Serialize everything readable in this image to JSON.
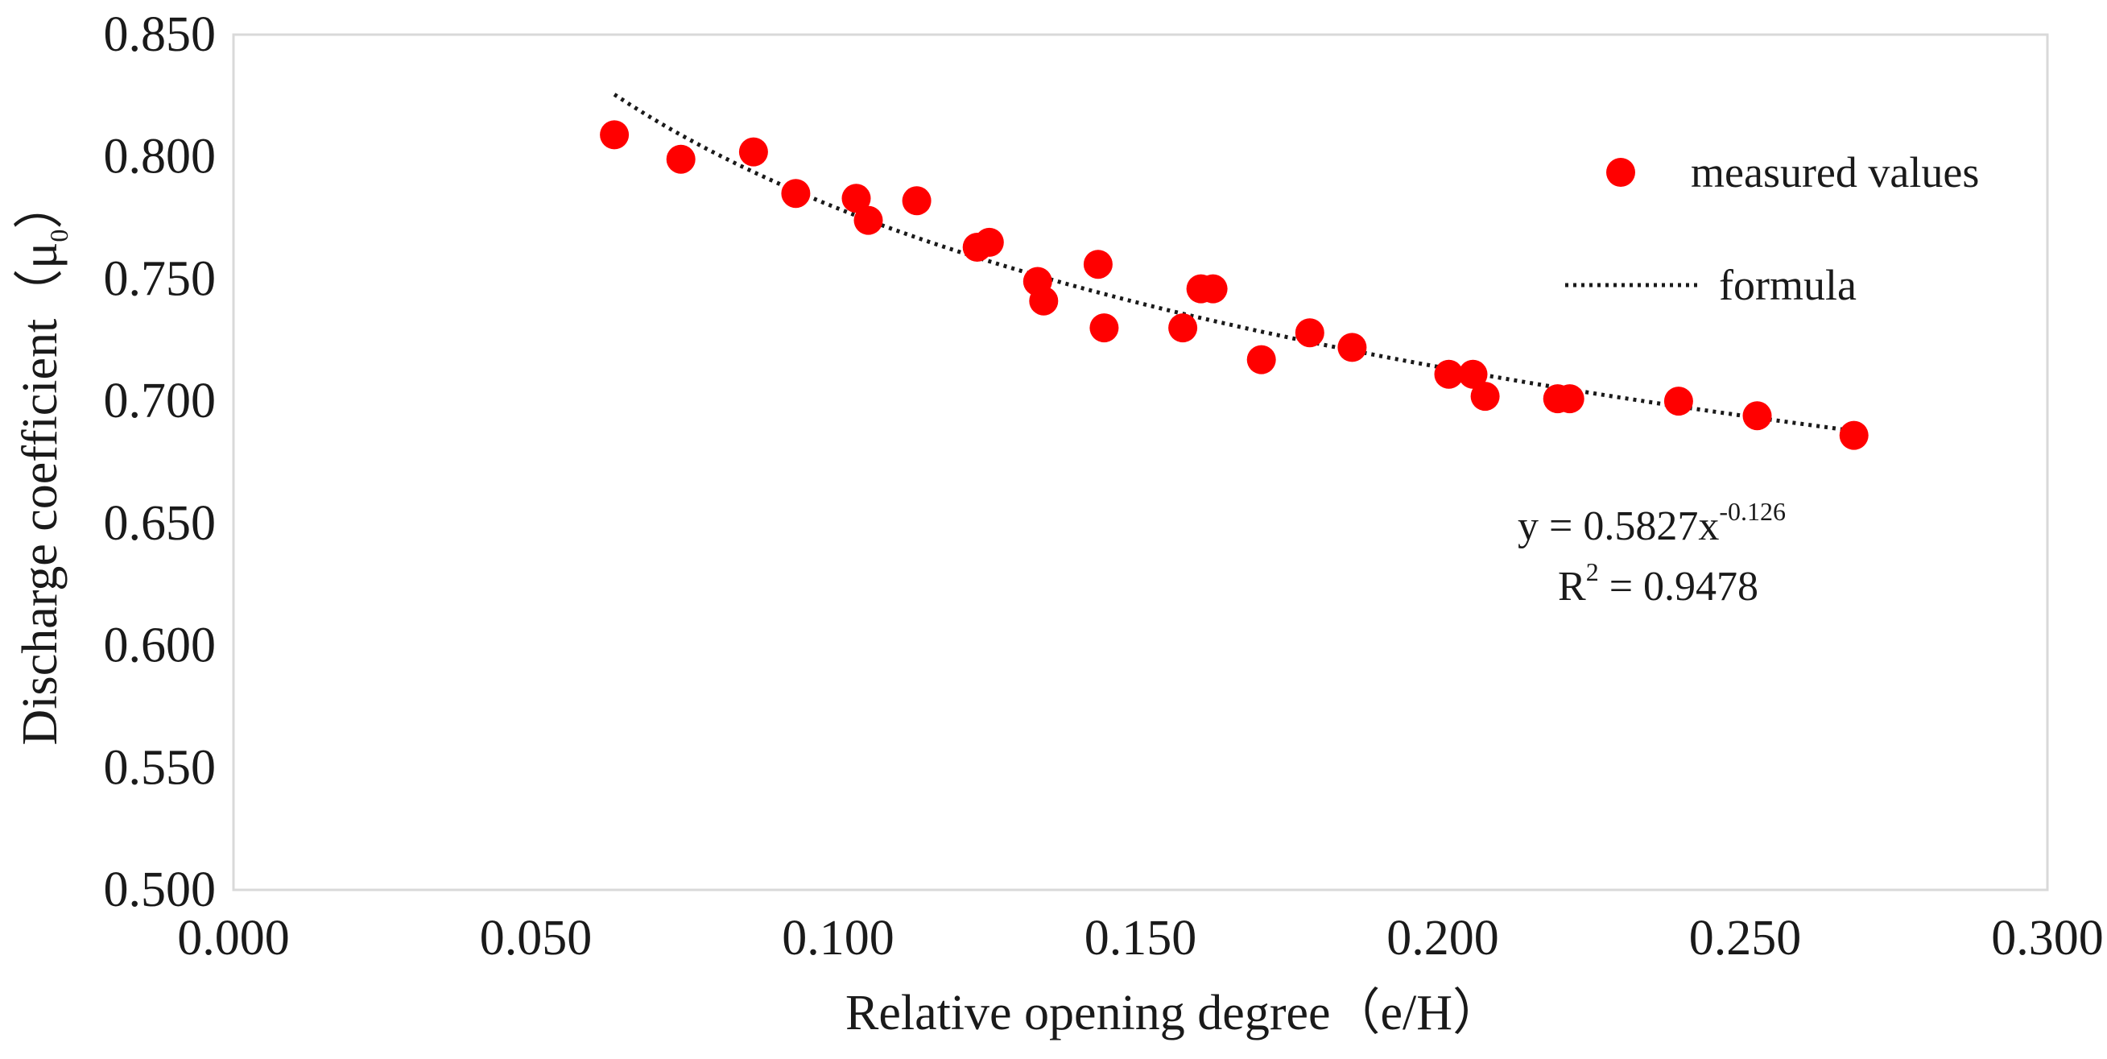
{
  "chart_data": {
    "type": "scatter",
    "title": "",
    "xlabel": "Relative opening degree（e/H）",
    "ylabel_prefix": "Discharge coefficient（μ",
    "ylabel_sub": "0",
    "ylabel_suffix": "）",
    "xlim": [
      0.0,
      0.3
    ],
    "ylim": [
      0.5,
      0.85
    ],
    "xticks": [
      0.0,
      0.05,
      0.1,
      0.15,
      0.2,
      0.25,
      0.3
    ],
    "xtick_labels": [
      "0.000",
      "0.050",
      "0.100",
      "0.150",
      "0.200",
      "0.250",
      "0.300"
    ],
    "yticks": [
      0.5,
      0.55,
      0.6,
      0.65,
      0.7,
      0.75,
      0.8,
      0.85
    ],
    "ytick_labels": [
      "0.500",
      "0.550",
      "0.600",
      "0.650",
      "0.700",
      "0.750",
      "0.800",
      "0.850"
    ],
    "grid": false,
    "series": [
      {
        "name": "measured values",
        "kind": "scatter",
        "color": "#ff0000",
        "points": [
          [
            0.063,
            0.809
          ],
          [
            0.074,
            0.799
          ],
          [
            0.086,
            0.802
          ],
          [
            0.093,
            0.785
          ],
          [
            0.103,
            0.783
          ],
          [
            0.105,
            0.774
          ],
          [
            0.113,
            0.782
          ],
          [
            0.123,
            0.763
          ],
          [
            0.125,
            0.765
          ],
          [
            0.133,
            0.749
          ],
          [
            0.134,
            0.741
          ],
          [
            0.143,
            0.756
          ],
          [
            0.144,
            0.73
          ],
          [
            0.157,
            0.73
          ],
          [
            0.16,
            0.746
          ],
          [
            0.162,
            0.746
          ],
          [
            0.17,
            0.717
          ],
          [
            0.178,
            0.728
          ],
          [
            0.185,
            0.722
          ],
          [
            0.201,
            0.711
          ],
          [
            0.205,
            0.711
          ],
          [
            0.207,
            0.702
          ],
          [
            0.219,
            0.701
          ],
          [
            0.221,
            0.701
          ],
          [
            0.239,
            0.7
          ],
          [
            0.252,
            0.694
          ],
          [
            0.268,
            0.686
          ]
        ]
      },
      {
        "name": "formula",
        "kind": "power-fit-line",
        "color": "#1a1a1a",
        "coefficient": 0.5827,
        "exponent": -0.126,
        "x_range": [
          0.063,
          0.268
        ]
      }
    ],
    "legend": {
      "position": "top-right",
      "entries": [
        "measured values",
        "formula"
      ]
    },
    "annotation": {
      "position": "lower-right",
      "eq_prefix": "y = 0.5827x",
      "eq_exponent": "-0.126",
      "r2_prefix": "R",
      "r2_exponent": "2",
      "r2_suffix": " = 0.9478"
    }
  }
}
